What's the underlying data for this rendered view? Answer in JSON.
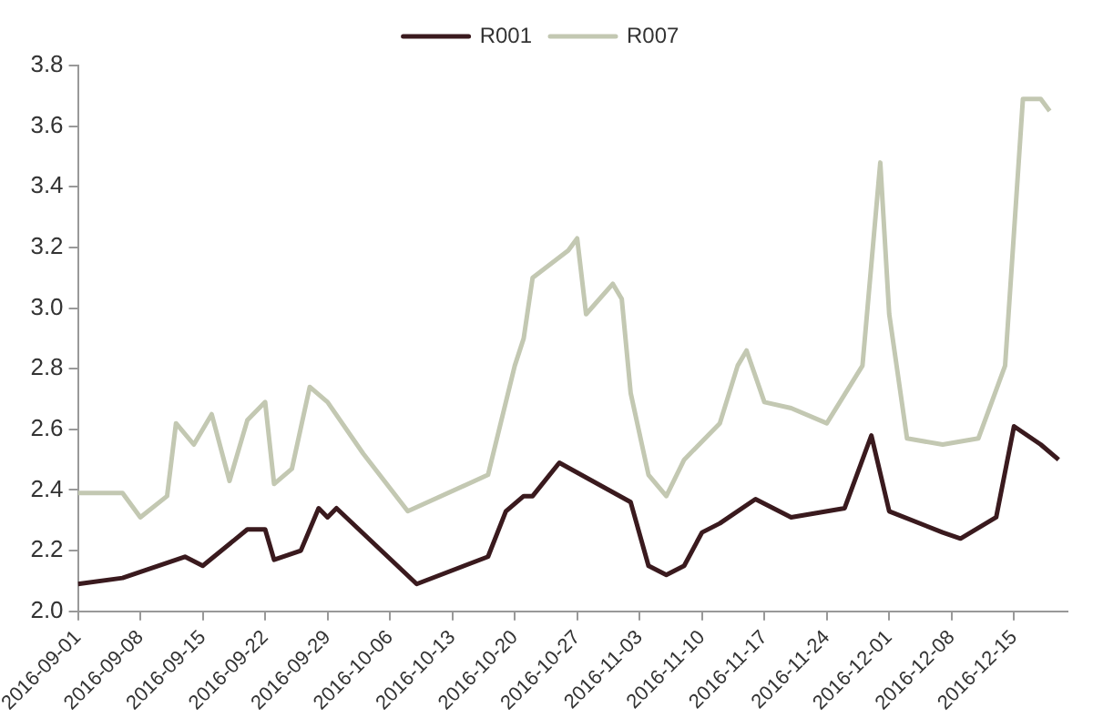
{
  "chart_data": {
    "type": "line",
    "legend": "top",
    "grid": false,
    "marker": "none",
    "line_style": "solid",
    "xlim": [
      "2016-09-01",
      "2016-12-21"
    ],
    "xticks": [
      "2016-09-01",
      "2016-09-08",
      "2016-09-15",
      "2016-09-22",
      "2016-09-29",
      "2016-10-06",
      "2016-10-13",
      "2016-10-20",
      "2016-10-27",
      "2016-11-03",
      "2016-11-10",
      "2016-11-17",
      "2016-11-24",
      "2016-12-01",
      "2016-12-08",
      "2016-12-15"
    ],
    "ylim": [
      2.0,
      3.8
    ],
    "yticks": [
      {
        "value": 2,
        "label": "2.0"
      },
      {
        "value": 2.2,
        "label": "2.2"
      },
      {
        "value": 2.4,
        "label": "2.4"
      },
      {
        "value": 2.6,
        "label": "2.6"
      },
      {
        "value": 2.8,
        "label": "2.8"
      },
      {
        "value": 3,
        "label": "3.0"
      },
      {
        "value": 3.2,
        "label": "3.2"
      },
      {
        "value": 3.4,
        "label": "3.4"
      },
      {
        "value": 3.6,
        "label": "3.6"
      },
      {
        "value": 3.8,
        "label": "3.8"
      }
    ],
    "series": [
      {
        "name": "R001",
        "color": "#3a1a1e",
        "x": [
          "2016-09-01",
          "2016-09-06",
          "2016-09-13",
          "2016-09-15",
          "2016-09-20",
          "2016-09-22",
          "2016-09-23",
          "2016-09-26",
          "2016-09-28",
          "2016-09-29",
          "2016-09-30",
          "2016-10-09",
          "2016-10-17",
          "2016-10-19",
          "2016-10-21",
          "2016-10-22",
          "2016-10-25",
          "2016-11-02",
          "2016-11-04",
          "2016-11-06",
          "2016-11-08",
          "2016-11-10",
          "2016-11-12",
          "2016-11-16",
          "2016-11-20",
          "2016-11-26",
          "2016-11-29",
          "2016-12-01",
          "2016-12-07",
          "2016-12-09",
          "2016-12-13",
          "2016-12-15",
          "2016-12-18",
          "2016-12-20"
        ],
        "values": [
          2.09,
          2.11,
          2.18,
          2.15,
          2.27,
          2.27,
          2.17,
          2.2,
          2.34,
          2.31,
          2.34,
          2.09,
          2.18,
          2.33,
          2.38,
          2.38,
          2.49,
          2.36,
          2.15,
          2.12,
          2.15,
          2.26,
          2.29,
          2.37,
          2.31,
          2.34,
          2.58,
          2.33,
          2.26,
          2.24,
          2.31,
          2.61,
          2.55,
          2.5
        ]
      },
      {
        "name": "R007",
        "color": "#c3c8b2",
        "x": [
          "2016-09-01",
          "2016-09-06",
          "2016-09-08",
          "2016-09-11",
          "2016-09-12",
          "2016-09-14",
          "2016-09-16",
          "2016-09-18",
          "2016-09-20",
          "2016-09-22",
          "2016-09-23",
          "2016-09-25",
          "2016-09-27",
          "2016-09-29",
          "2016-10-03",
          "2016-10-08",
          "2016-10-17",
          "2016-10-20",
          "2016-10-21",
          "2016-10-22",
          "2016-10-26",
          "2016-10-27",
          "2016-10-28",
          "2016-10-31",
          "2016-11-01",
          "2016-11-02",
          "2016-11-04",
          "2016-11-06",
          "2016-11-08",
          "2016-11-12",
          "2016-11-14",
          "2016-11-15",
          "2016-11-17",
          "2016-11-20",
          "2016-11-24",
          "2016-11-28",
          "2016-11-30",
          "2016-12-01",
          "2016-12-03",
          "2016-12-07",
          "2016-12-11",
          "2016-12-14",
          "2016-12-16",
          "2016-12-18",
          "2016-12-19"
        ],
        "values": [
          2.39,
          2.39,
          2.31,
          2.38,
          2.62,
          2.55,
          2.65,
          2.43,
          2.63,
          2.69,
          2.42,
          2.47,
          2.74,
          2.69,
          2.52,
          2.33,
          2.45,
          2.81,
          2.9,
          3.1,
          3.19,
          3.23,
          2.98,
          3.08,
          3.03,
          2.72,
          2.45,
          2.38,
          2.5,
          2.62,
          2.81,
          2.86,
          2.69,
          2.67,
          2.62,
          2.81,
          3.48,
          2.98,
          2.57,
          2.55,
          2.57,
          2.81,
          3.69,
          3.69,
          3.65
        ]
      }
    ]
  }
}
